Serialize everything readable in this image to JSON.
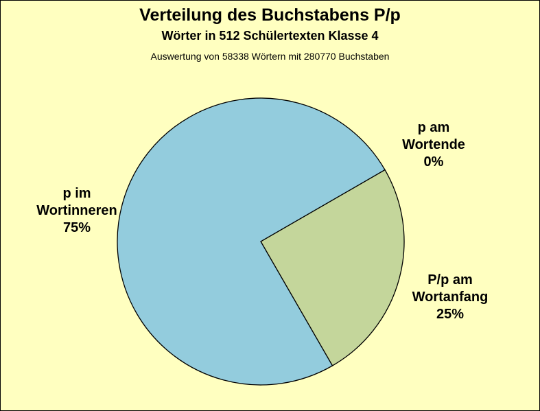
{
  "chart_data": {
    "type": "pie",
    "title": "Verteilung des Buchstabens P/p",
    "subtitle": "Wörter in 512 Schülertexten Klasse 4",
    "note": "Auswertung von 58338 Wörtern mit 280770 Buchstaben",
    "slices": [
      {
        "name": "p am Wortende",
        "lines": [
          "p am",
          "Wortende",
          "0%"
        ],
        "value": 0,
        "color": "#c4d69b"
      },
      {
        "name": "P/p am Wortanfang",
        "lines": [
          "P/p am",
          "Wortanfang",
          "25%"
        ],
        "value": 25,
        "color": "#c4d69b"
      },
      {
        "name": "p im Wortinneren",
        "lines": [
          "p im",
          "Wortinneren",
          "75%"
        ],
        "value": 75,
        "color": "#93ccdd"
      }
    ],
    "start_angle_deg": -30,
    "direction": "clockwise"
  }
}
